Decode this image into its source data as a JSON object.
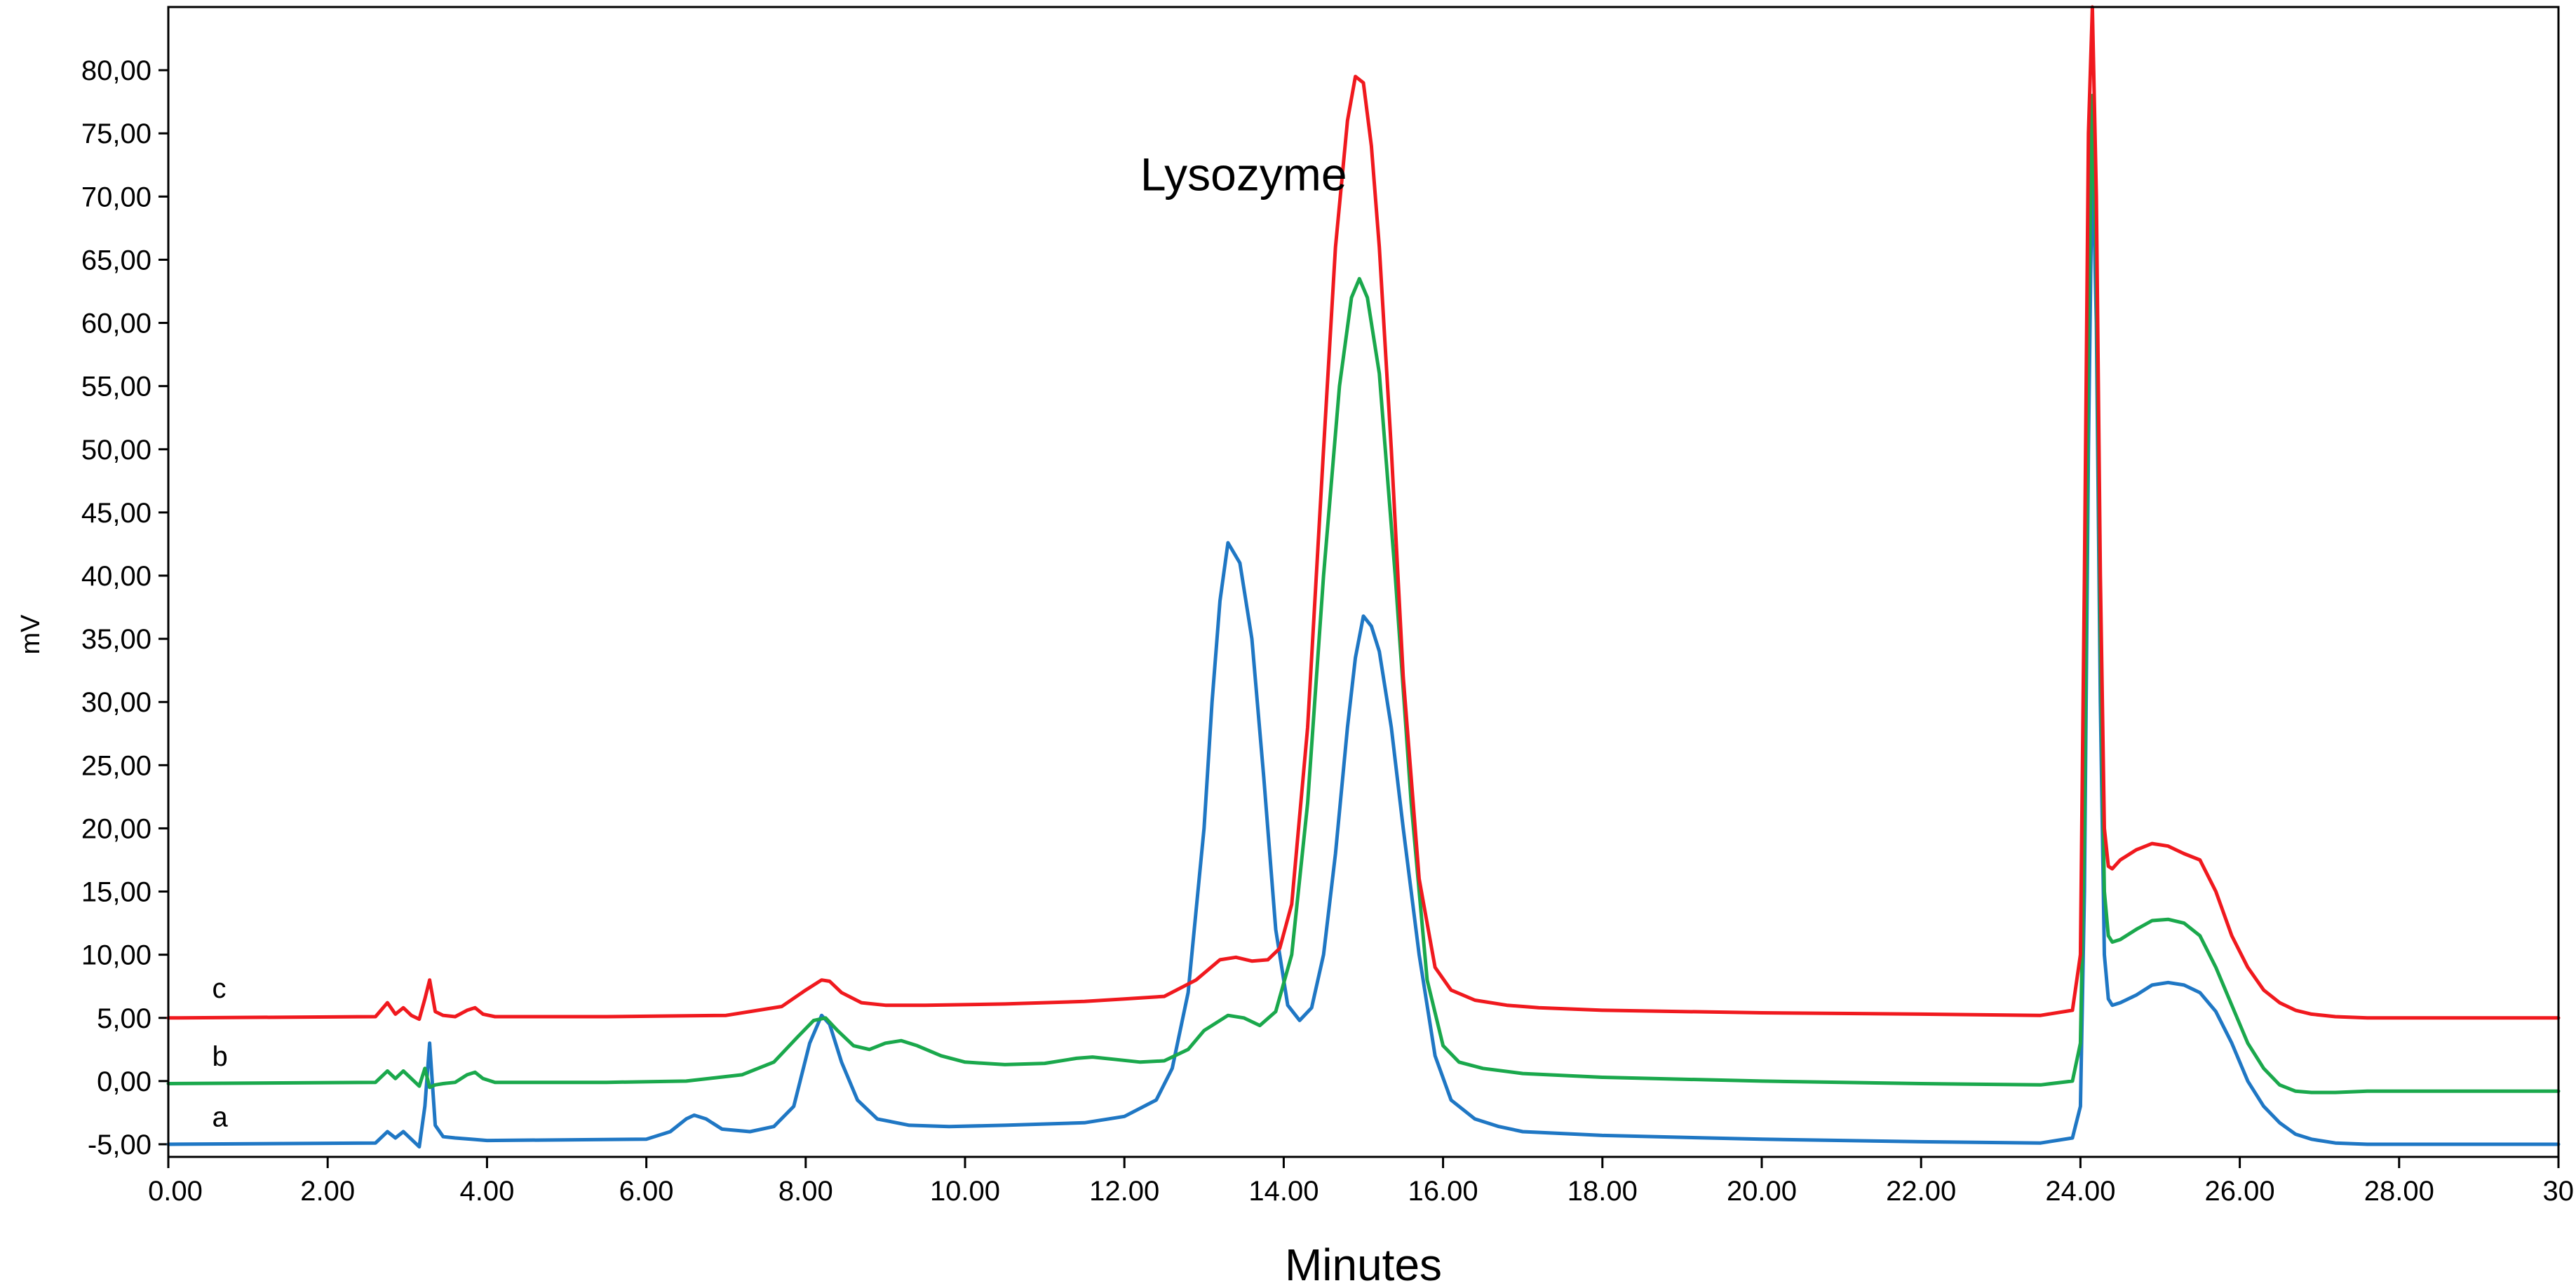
{
  "chart_data": {
    "type": "line",
    "title": "",
    "xlabel": "Minutes",
    "ylabel": "mV",
    "xlim": [
      0,
      30
    ],
    "ylim": [
      -6,
      85
    ],
    "x_ticks": [
      "0.00",
      "2.00",
      "4.00",
      "6.00",
      "8.00",
      "10.00",
      "12.00",
      "14.00",
      "16.00",
      "18.00",
      "20.00",
      "22.00",
      "24.00",
      "26.00",
      "28.00",
      "30"
    ],
    "y_ticks": [
      "-5,00",
      "0,00",
      "5,00",
      "10,00",
      "15,00",
      "20,00",
      "25,00",
      "30,00",
      "35,00",
      "40,00",
      "45,00",
      "50,00",
      "55,00",
      "60,00",
      "65,00",
      "70,00",
      "75,00",
      "80,00"
    ],
    "grid": false,
    "legend": "none",
    "annotations": [
      {
        "text": "Lysozyme",
        "x": 12.2,
        "y": 70.5
      }
    ],
    "series": [
      {
        "name": "a",
        "color": "#1f77c4",
        "x": [
          0,
          2.6,
          2.75,
          2.85,
          2.95,
          3.05,
          3.15,
          3.22,
          3.28,
          3.35,
          3.45,
          3.6,
          3.8,
          4.0,
          6.0,
          6.3,
          6.5,
          6.6,
          6.75,
          6.95,
          7.3,
          7.6,
          7.85,
          8.05,
          8.2,
          8.3,
          8.45,
          8.65,
          8.9,
          9.3,
          9.8,
          10.5,
          11.5,
          12.0,
          12.4,
          12.6,
          12.8,
          13.0,
          13.1,
          13.2,
          13.3,
          13.45,
          13.6,
          13.75,
          13.9,
          14.05,
          14.2,
          14.35,
          14.5,
          14.65,
          14.8,
          14.9,
          15.0,
          15.1,
          15.2,
          15.35,
          15.5,
          15.7,
          15.9,
          16.1,
          16.4,
          16.7,
          17.0,
          18.0,
          20.0,
          22.0,
          23.5,
          23.9,
          24.0,
          24.05,
          24.1,
          24.15,
          24.2,
          24.25,
          24.3,
          24.35,
          24.4,
          24.5,
          24.7,
          24.9,
          25.1,
          25.3,
          25.5,
          25.7,
          25.9,
          26.1,
          26.3,
          26.5,
          26.7,
          26.9,
          27.2,
          27.6,
          28.0,
          29.0,
          30.0
        ],
        "y": [
          -5,
          -4.9,
          -4.0,
          -4.5,
          -4.0,
          -4.6,
          -5.2,
          -2.0,
          3.0,
          -3.5,
          -4.4,
          -4.5,
          -4.6,
          -4.7,
          -4.6,
          -4.0,
          -3.0,
          -2.7,
          -3.0,
          -3.8,
          -4.0,
          -3.6,
          -2.0,
          3.0,
          5.2,
          4.5,
          1.5,
          -1.5,
          -3.0,
          -3.5,
          -3.6,
          -3.5,
          -3.3,
          -2.8,
          -1.5,
          1.0,
          7.0,
          20.0,
          30.0,
          38.0,
          42.6,
          41.0,
          35.0,
          24.0,
          12.0,
          6.0,
          4.8,
          5.8,
          10.0,
          18.0,
          28.0,
          33.5,
          36.8,
          36.0,
          34.0,
          28.0,
          20.0,
          10.0,
          2.0,
          -1.5,
          -3.0,
          -3.6,
          -4.0,
          -4.3,
          -4.6,
          -4.8,
          -4.9,
          -4.5,
          -2.0,
          15.0,
          50.0,
          74.0,
          60.0,
          30.0,
          10.0,
          6.5,
          6.0,
          6.2,
          6.8,
          7.6,
          7.8,
          7.6,
          7.0,
          5.5,
          3.0,
          0.0,
          -2.0,
          -3.3,
          -4.2,
          -4.6,
          -4.9,
          -5.0,
          -5.0,
          -5.0,
          -5.0
        ]
      },
      {
        "name": "b",
        "color": "#1aa84c",
        "x": [
          0,
          2.6,
          2.75,
          2.85,
          2.95,
          3.05,
          3.15,
          3.22,
          3.28,
          3.35,
          3.45,
          3.6,
          3.75,
          3.85,
          3.95,
          4.1,
          5.5,
          6.5,
          7.2,
          7.6,
          7.9,
          8.1,
          8.25,
          8.4,
          8.6,
          8.8,
          9.0,
          9.2,
          9.4,
          9.7,
          10.0,
          10.5,
          11.0,
          11.4,
          11.6,
          11.9,
          12.2,
          12.5,
          12.8,
          13.0,
          13.3,
          13.5,
          13.7,
          13.9,
          14.1,
          14.3,
          14.5,
          14.7,
          14.85,
          14.95,
          15.05,
          15.2,
          15.4,
          15.6,
          15.8,
          16.0,
          16.2,
          16.5,
          17.0,
          18.0,
          20.0,
          22.0,
          23.5,
          23.9,
          24.0,
          24.05,
          24.1,
          24.15,
          24.2,
          24.25,
          24.3,
          24.35,
          24.4,
          24.5,
          24.7,
          24.9,
          25.1,
          25.3,
          25.5,
          25.7,
          25.9,
          26.1,
          26.3,
          26.5,
          26.7,
          26.9,
          27.2,
          27.6,
          28.0,
          29.0,
          30.0
        ],
        "y": [
          -0.2,
          -0.1,
          0.8,
          0.2,
          0.8,
          0.2,
          -0.4,
          1.0,
          -0.5,
          -0.3,
          -0.2,
          -0.1,
          0.5,
          0.7,
          0.2,
          -0.1,
          -0.1,
          0.0,
          0.5,
          1.5,
          3.5,
          4.8,
          5.0,
          4.0,
          2.8,
          2.5,
          3.0,
          3.2,
          2.8,
          2.0,
          1.5,
          1.3,
          1.4,
          1.8,
          1.9,
          1.7,
          1.5,
          1.6,
          2.5,
          4.0,
          5.2,
          5.0,
          4.4,
          5.5,
          10.0,
          22.0,
          40.0,
          55.0,
          62.0,
          63.5,
          62.0,
          56.0,
          40.0,
          22.0,
          8.0,
          2.8,
          1.5,
          1.0,
          0.6,
          0.3,
          0.0,
          -0.2,
          -0.3,
          0.0,
          3.0,
          20.0,
          60.0,
          78.0,
          65.0,
          35.0,
          15.0,
          11.5,
          11.0,
          11.2,
          12.0,
          12.7,
          12.8,
          12.5,
          11.5,
          9.0,
          6.0,
          3.0,
          1.0,
          -0.3,
          -0.8,
          -0.9,
          -0.9,
          -0.8,
          -0.8,
          -0.8,
          -0.8
        ]
      },
      {
        "name": "c",
        "color": "#f0191e",
        "x": [
          0,
          2.6,
          2.75,
          2.85,
          2.95,
          3.05,
          3.15,
          3.22,
          3.28,
          3.35,
          3.45,
          3.6,
          3.75,
          3.85,
          3.95,
          4.1,
          5.5,
          7.0,
          7.7,
          8.0,
          8.2,
          8.3,
          8.45,
          8.7,
          9.0,
          9.5,
          10.5,
          11.5,
          12.0,
          12.5,
          12.9,
          13.2,
          13.4,
          13.6,
          13.8,
          13.95,
          14.1,
          14.3,
          14.5,
          14.65,
          14.8,
          14.9,
          15.0,
          15.1,
          15.2,
          15.35,
          15.5,
          15.7,
          15.9,
          16.1,
          16.4,
          16.8,
          17.2,
          18.0,
          20.0,
          22.0,
          23.5,
          23.9,
          24.0,
          24.05,
          24.1,
          24.15,
          24.2,
          24.25,
          24.3,
          24.35,
          24.4,
          24.5,
          24.7,
          24.9,
          25.1,
          25.3,
          25.5,
          25.7,
          25.9,
          26.1,
          26.3,
          26.5,
          26.7,
          26.9,
          27.2,
          27.6,
          28.0,
          29.0,
          30.0
        ],
        "y": [
          5.0,
          5.1,
          6.2,
          5.3,
          5.8,
          5.2,
          4.9,
          6.5,
          8.0,
          5.5,
          5.2,
          5.1,
          5.6,
          5.8,
          5.3,
          5.1,
          5.1,
          5.2,
          5.9,
          7.2,
          8.0,
          7.9,
          7.0,
          6.2,
          6.0,
          6.0,
          6.1,
          6.3,
          6.5,
          6.7,
          8.0,
          9.6,
          9.8,
          9.5,
          9.6,
          10.5,
          14.0,
          28.0,
          50.0,
          66.0,
          76.0,
          79.5,
          79.0,
          74.0,
          66.0,
          50.0,
          32.0,
          16.0,
          9.0,
          7.2,
          6.4,
          6.0,
          5.8,
          5.6,
          5.4,
          5.3,
          5.2,
          5.6,
          10.0,
          40.0,
          75.0,
          85.0,
          70.0,
          40.0,
          20.0,
          17.0,
          16.8,
          17.5,
          18.3,
          18.8,
          18.6,
          18.0,
          17.5,
          15.0,
          11.5,
          9.0,
          7.2,
          6.2,
          5.6,
          5.3,
          5.1,
          5.0,
          5.0,
          5.0,
          5.0
        ]
      }
    ],
    "series_labels": [
      {
        "text": "c",
        "x": 0.55,
        "y": 6.6
      },
      {
        "text": "b",
        "x": 0.55,
        "y": 1.2
      },
      {
        "text": "a",
        "x": 0.55,
        "y": -3.6
      }
    ]
  }
}
